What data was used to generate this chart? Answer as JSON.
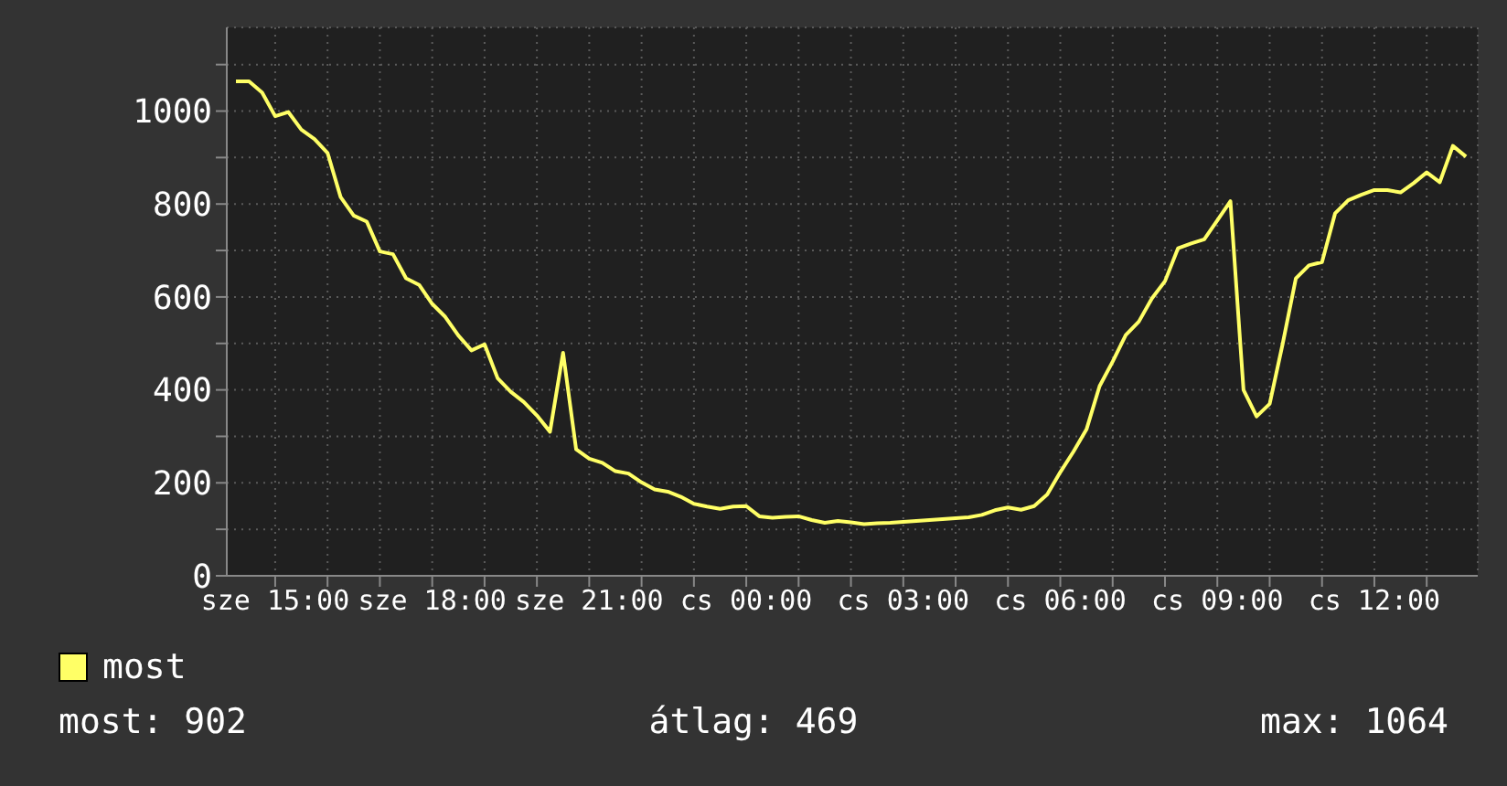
{
  "chart_data": {
    "type": "line",
    "categories": [
      null,
      null,
      null,
      "sze 15:00",
      null,
      null,
      null,
      null,
      null,
      null,
      null,
      null,
      null,
      null,
      null,
      "sze 18:00",
      null,
      null,
      null,
      null,
      null,
      null,
      null,
      null,
      null,
      null,
      null,
      "sze 21:00",
      null,
      null,
      null,
      null,
      null,
      null,
      null,
      null,
      null,
      null,
      null,
      "cs 00:00",
      null,
      null,
      null,
      null,
      null,
      null,
      null,
      null,
      null,
      null,
      null,
      "cs 03:00",
      null,
      null,
      null,
      null,
      null,
      null,
      null,
      null,
      null,
      null,
      null,
      "cs 06:00",
      null,
      null,
      null,
      null,
      null,
      null,
      null,
      null,
      null,
      null,
      null,
      "cs 09:00",
      null,
      null,
      null,
      null,
      null,
      null,
      null,
      null,
      null,
      null,
      null,
      "cs 12:00",
      null,
      null,
      null,
      null,
      null,
      null,
      null
    ],
    "series": [
      {
        "name": "most",
        "color": "#ffff66",
        "values": [
          1064,
          1064,
          1040,
          989,
          998,
          960,
          940,
          910,
          815,
          775,
          762,
          698,
          692,
          640,
          626,
          585,
          557,
          517,
          485,
          498,
          425,
          396,
          374,
          345,
          310,
          480,
          272,
          252,
          243,
          225,
          220,
          201,
          186,
          181,
          170,
          155,
          149,
          144,
          149,
          150,
          128,
          125,
          127,
          128,
          120,
          114,
          118,
          115,
          111,
          113,
          114,
          116,
          118,
          120,
          122,
          124,
          126,
          131,
          141,
          147,
          142,
          150,
          175,
          223,
          267,
          315,
          408,
          461,
          518,
          547,
          597,
          634,
          705,
          715,
          724,
          765,
          806,
          400,
          343,
          370,
          500,
          640,
          668,
          675,
          780,
          808,
          820,
          830,
          830,
          825,
          845,
          868,
          847,
          925,
          902
        ]
      }
    ],
    "ylim": [
      0,
      1180
    ],
    "yticks": [
      0,
      {
        "value": 100,
        "label": null
      },
      200,
      {
        "value": 300,
        "label": null
      },
      400,
      {
        "value": 500,
        "label": null
      },
      600,
      {
        "value": 700,
        "label": null
      },
      800,
      {
        "value": 900,
        "label": null
      },
      1000,
      {
        "value": 1100,
        "label": null
      }
    ],
    "grid": true,
    "legend": "bottom left",
    "annotations": [
      "most: 902",
      "átlag: 469",
      "max: 1064"
    ]
  }
}
